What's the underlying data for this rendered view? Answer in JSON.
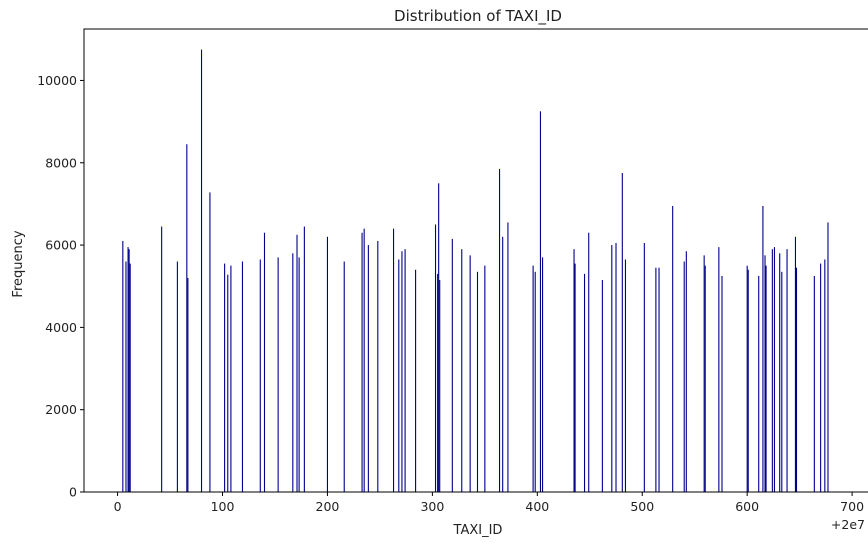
{
  "chart_data": {
    "type": "bar",
    "title": "Distribution of TAXI_ID",
    "xlabel": "TAXI_ID",
    "ylabel": "Frequency",
    "x_offset_label": "+2e7",
    "xlim": [
      -32,
      718
    ],
    "ylim": [
      0,
      11250
    ],
    "x_ticks": [
      0,
      100,
      200,
      300,
      400,
      500,
      600,
      700
    ],
    "y_ticks": [
      0,
      2000,
      4000,
      6000,
      8000,
      10000
    ],
    "bar_color": "#00008b",
    "grid": false,
    "points": [
      {
        "x": 5,
        "y": 6100
      },
      {
        "x": 8,
        "y": 5600
      },
      {
        "x": 10,
        "y": 5950
      },
      {
        "x": 11,
        "y": 5900
      },
      {
        "x": 12,
        "y": 5550
      },
      {
        "x": 42,
        "y": 6450
      },
      {
        "x": 57,
        "y": 5600
      },
      {
        "x": 66,
        "y": 8450
      },
      {
        "x": 67,
        "y": 5200
      },
      {
        "x": 80,
        "y": 10750
      },
      {
        "x": 88,
        "y": 7280
      },
      {
        "x": 102,
        "y": 5550
      },
      {
        "x": 105,
        "y": 5280
      },
      {
        "x": 108,
        "y": 5500
      },
      {
        "x": 119,
        "y": 5600
      },
      {
        "x": 136,
        "y": 5650
      },
      {
        "x": 140,
        "y": 6300
      },
      {
        "x": 153,
        "y": 5700
      },
      {
        "x": 167,
        "y": 5800
      },
      {
        "x": 171,
        "y": 6250
      },
      {
        "x": 173,
        "y": 5700
      },
      {
        "x": 178,
        "y": 6450
      },
      {
        "x": 200,
        "y": 6200
      },
      {
        "x": 216,
        "y": 5600
      },
      {
        "x": 233,
        "y": 6300
      },
      {
        "x": 235,
        "y": 6400
      },
      {
        "x": 239,
        "y": 6000
      },
      {
        "x": 248,
        "y": 6100
      },
      {
        "x": 263,
        "y": 6400
      },
      {
        "x": 268,
        "y": 5650
      },
      {
        "x": 271,
        "y": 5850
      },
      {
        "x": 274,
        "y": 5900
      },
      {
        "x": 284,
        "y": 5400
      },
      {
        "x": 303,
        "y": 6500
      },
      {
        "x": 305,
        "y": 5300
      },
      {
        "x": 306,
        "y": 7500
      },
      {
        "x": 307,
        "y": 5150
      },
      {
        "x": 319,
        "y": 6150
      },
      {
        "x": 328,
        "y": 5900
      },
      {
        "x": 336,
        "y": 5750
      },
      {
        "x": 343,
        "y": 5350
      },
      {
        "x": 350,
        "y": 5500
      },
      {
        "x": 364,
        "y": 7850
      },
      {
        "x": 367,
        "y": 6200
      },
      {
        "x": 372,
        "y": 6550
      },
      {
        "x": 396,
        "y": 5500
      },
      {
        "x": 398,
        "y": 5350
      },
      {
        "x": 403,
        "y": 9250
      },
      {
        "x": 405,
        "y": 5700
      },
      {
        "x": 435,
        "y": 5900
      },
      {
        "x": 436,
        "y": 5550
      },
      {
        "x": 445,
        "y": 5300
      },
      {
        "x": 449,
        "y": 6300
      },
      {
        "x": 462,
        "y": 5150
      },
      {
        "x": 471,
        "y": 6000
      },
      {
        "x": 475,
        "y": 6050
      },
      {
        "x": 481,
        "y": 7750
      },
      {
        "x": 484,
        "y": 5650
      },
      {
        "x": 502,
        "y": 6050
      },
      {
        "x": 513,
        "y": 5450
      },
      {
        "x": 516,
        "y": 5450
      },
      {
        "x": 529,
        "y": 6950
      },
      {
        "x": 540,
        "y": 5600
      },
      {
        "x": 542,
        "y": 5850
      },
      {
        "x": 559,
        "y": 5750
      },
      {
        "x": 560,
        "y": 5500
      },
      {
        "x": 573,
        "y": 5950
      },
      {
        "x": 576,
        "y": 5250
      },
      {
        "x": 600,
        "y": 5500
      },
      {
        "x": 601,
        "y": 5400
      },
      {
        "x": 611,
        "y": 5250
      },
      {
        "x": 615,
        "y": 6950
      },
      {
        "x": 617,
        "y": 5750
      },
      {
        "x": 618,
        "y": 5500
      },
      {
        "x": 624,
        "y": 5900
      },
      {
        "x": 626,
        "y": 5950
      },
      {
        "x": 631,
        "y": 5800
      },
      {
        "x": 633,
        "y": 5350
      },
      {
        "x": 638,
        "y": 5900
      },
      {
        "x": 646,
        "y": 6200
      },
      {
        "x": 647,
        "y": 5450
      },
      {
        "x": 664,
        "y": 5250
      },
      {
        "x": 670,
        "y": 5550
      },
      {
        "x": 674,
        "y": 5650
      },
      {
        "x": 677,
        "y": 6550
      }
    ]
  }
}
